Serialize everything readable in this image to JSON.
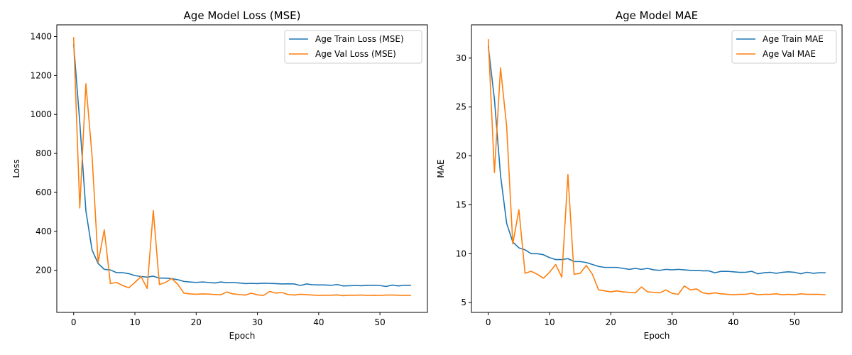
{
  "chart_data": [
    {
      "type": "line",
      "title": "Age Model Loss (MSE)",
      "xlabel": "Epoch",
      "ylabel": "Loss",
      "xlim": [
        -2.75,
        57.75
      ],
      "ylim": [
        -16,
        1460
      ],
      "xticks": [
        0,
        10,
        20,
        30,
        40,
        50
      ],
      "yticks": [
        200,
        400,
        600,
        800,
        1000,
        1200,
        1400
      ],
      "grid": false,
      "legend": "top-right",
      "x": [
        0,
        1,
        2,
        3,
        4,
        5,
        6,
        7,
        8,
        9,
        10,
        11,
        12,
        13,
        14,
        15,
        16,
        17,
        18,
        19,
        20,
        21,
        22,
        23,
        24,
        25,
        26,
        27,
        28,
        29,
        30,
        31,
        32,
        33,
        34,
        35,
        36,
        37,
        38,
        39,
        40,
        41,
        42,
        43,
        44,
        45,
        46,
        47,
        48,
        49,
        50,
        51,
        52,
        53,
        54,
        55
      ],
      "series": [
        {
          "name": "Age Train Loss (MSE)",
          "color": "#1f77b4",
          "values": [
            1360,
            960,
            505,
            305,
            235,
            205,
            202,
            188,
            188,
            183,
            173,
            168,
            165,
            170,
            160,
            160,
            157,
            152,
            143,
            140,
            138,
            140,
            138,
            135,
            140,
            137,
            138,
            135,
            132,
            133,
            132,
            134,
            133,
            132,
            130,
            131,
            130,
            122,
            130,
            126,
            125,
            125,
            123,
            127,
            120,
            121,
            122,
            121,
            123,
            123,
            122,
            117,
            124,
            120,
            123,
            123
          ]
        },
        {
          "name": "Age Val Loss (MSE)",
          "color": "#ff7f0e",
          "values": [
            1395,
            520,
            1158,
            790,
            240,
            408,
            132,
            138,
            122,
            110,
            138,
            168,
            107,
            507,
            127,
            138,
            158,
            128,
            83,
            79,
            77,
            79,
            78,
            76,
            74,
            89,
            79,
            76,
            73,
            83,
            74,
            71,
            92,
            83,
            86,
            76,
            73,
            77,
            75,
            73,
            71,
            72,
            72,
            74,
            70,
            72,
            72,
            73,
            71,
            72,
            71,
            73,
            73,
            72,
            71,
            71
          ]
        }
      ]
    },
    {
      "type": "line",
      "title": "Age Model MAE",
      "xlabel": "Epoch",
      "ylabel": "MAE",
      "xlim": [
        -2.75,
        57.75
      ],
      "ylim": [
        4.0,
        33.4
      ],
      "xticks": [
        0,
        10,
        20,
        30,
        40,
        50
      ],
      "yticks": [
        5,
        10,
        15,
        20,
        25,
        30
      ],
      "grid": false,
      "legend": "top-right",
      "x": [
        0,
        1,
        2,
        3,
        4,
        5,
        6,
        7,
        8,
        9,
        10,
        11,
        12,
        13,
        14,
        15,
        16,
        17,
        18,
        19,
        20,
        21,
        22,
        23,
        24,
        25,
        26,
        27,
        28,
        29,
        30,
        31,
        32,
        33,
        34,
        35,
        36,
        37,
        38,
        39,
        40,
        41,
        42,
        43,
        44,
        45,
        46,
        47,
        48,
        49,
        50,
        51,
        52,
        53,
        54,
        55
      ],
      "series": [
        {
          "name": "Age Train MAE",
          "color": "#1f77b4",
          "values": [
            31.2,
            25.8,
            18.0,
            13.1,
            11.2,
            10.6,
            10.4,
            10.0,
            10.0,
            9.9,
            9.6,
            9.4,
            9.4,
            9.5,
            9.2,
            9.2,
            9.1,
            8.9,
            8.7,
            8.6,
            8.6,
            8.6,
            8.5,
            8.4,
            8.5,
            8.4,
            8.5,
            8.35,
            8.3,
            8.4,
            8.35,
            8.4,
            8.35,
            8.3,
            8.3,
            8.25,
            8.25,
            8.05,
            8.2,
            8.2,
            8.15,
            8.1,
            8.1,
            8.2,
            7.95,
            8.05,
            8.1,
            8.0,
            8.1,
            8.15,
            8.1,
            7.95,
            8.1,
            8.0,
            8.05,
            8.05
          ]
        },
        {
          "name": "Age Val MAE",
          "color": "#ff7f0e",
          "values": [
            31.9,
            18.3,
            29.0,
            23.0,
            11.0,
            14.5,
            8.0,
            8.2,
            7.9,
            7.5,
            8.1,
            8.9,
            7.6,
            18.1,
            7.9,
            8.0,
            8.8,
            7.9,
            6.3,
            6.2,
            6.1,
            6.2,
            6.1,
            6.05,
            6.0,
            6.6,
            6.1,
            6.05,
            6.0,
            6.3,
            5.95,
            5.85,
            6.7,
            6.3,
            6.4,
            6.0,
            5.9,
            6.0,
            5.9,
            5.85,
            5.8,
            5.85,
            5.85,
            5.95,
            5.8,
            5.85,
            5.85,
            5.9,
            5.8,
            5.85,
            5.8,
            5.9,
            5.85,
            5.85,
            5.85,
            5.8
          ]
        }
      ]
    }
  ]
}
